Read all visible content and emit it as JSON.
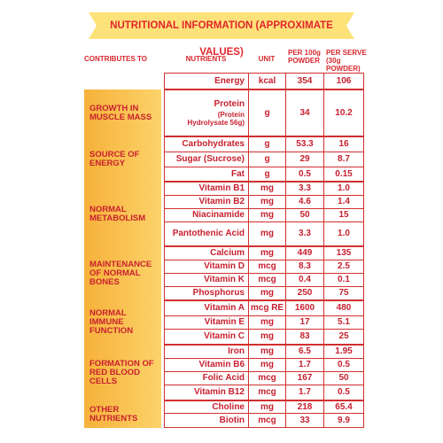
{
  "title": "NUTRITIONAL INFORMATION (APPROXIMATE VALUES)",
  "table": {
    "headers": [
      "CONTRIBUTES TO",
      "NUTRIENTS",
      "UNIT",
      "PER 100g POWDER",
      "PER SERVE (30g POWDER)"
    ],
    "groups": [
      {
        "rows": [
          {
            "nutrient": "Energy",
            "unit": "kcal",
            "per_100g": "354",
            "per_serve": "106"
          }
        ]
      },
      {
        "label": "GROWTH IN MUSCLE MASS",
        "rows": [
          {
            "nutrient": "Protein",
            "note": "(Protein Hydrolysate 56g)",
            "unit": "g",
            "per_100g": "34",
            "per_serve": "10.2"
          }
        ]
      },
      {
        "label": "SOURCE OF ENERGY",
        "rows": [
          {
            "nutrient": "Carbohydrates",
            "unit": "g",
            "per_100g": "53.3",
            "per_serve": "16"
          },
          {
            "nutrient": "Sugar (Sucrose)",
            "unit": "g",
            "per_100g": "29",
            "per_serve": "8.7"
          },
          {
            "nutrient": "Fat",
            "unit": "g",
            "per_100g": "0.5",
            "per_serve": "0.15"
          }
        ]
      },
      {
        "label": "NORMAL METABOLISM",
        "rows": [
          {
            "nutrient": "Vitamin B1",
            "unit": "mg",
            "per_100g": "3.3",
            "per_serve": "1.0"
          },
          {
            "nutrient": "Vitamin B2",
            "unit": "mg",
            "per_100g": "4.6",
            "per_serve": "1.4"
          },
          {
            "nutrient": "Niacinamide",
            "unit": "mg",
            "per_100g": "50",
            "per_serve": "15"
          },
          {
            "nutrient": "Pantothenic Acid",
            "unit": "mg",
            "per_100g": "3.3",
            "per_serve": "1.0"
          }
        ]
      },
      {
        "label": "MAINTENANCE OF NORMAL BONES",
        "rows": [
          {
            "nutrient": "Calcium",
            "unit": "mg",
            "per_100g": "449",
            "per_serve": "135"
          },
          {
            "nutrient": "Vitamin D",
            "unit": "mcg",
            "per_100g": "8.3",
            "per_serve": "2.5"
          },
          {
            "nutrient": "Vitamin K",
            "unit": "mcg",
            "per_100g": "0.4",
            "per_serve": "0.1"
          },
          {
            "nutrient": "Phosphorus",
            "unit": "mg",
            "per_100g": "250",
            "per_serve": "75"
          }
        ]
      },
      {
        "label": "NORMAL IMMUNE FUNCTION",
        "rows": [
          {
            "nutrient": "Vitamin A",
            "unit": "mcg RE",
            "per_100g": "1600",
            "per_serve": "480"
          },
          {
            "nutrient": "Vitamin E",
            "unit": "mg",
            "per_100g": "17",
            "per_serve": "5.1"
          },
          {
            "nutrient": "Vitamin C",
            "unit": "mg",
            "per_100g": "83",
            "per_serve": "25"
          }
        ]
      },
      {
        "label": "FORMATION OF RED BLOOD CELLS",
        "rows": [
          {
            "nutrient": "Iron",
            "unit": "mg",
            "per_100g": "6.5",
            "per_serve": "1.95"
          },
          {
            "nutrient": "Vitamin B6",
            "unit": "mg",
            "per_100g": "1.7",
            "per_serve": "0.5"
          },
          {
            "nutrient": "Folic Acid",
            "unit": "mcg",
            "per_100g": "167",
            "per_serve": "50"
          },
          {
            "nutrient": "Vitamin B12",
            "unit": "mcg",
            "per_100g": "1.7",
            "per_serve": "0.5"
          }
        ]
      },
      {
        "label": "OTHER NUTRIENTS",
        "rows": [
          {
            "nutrient": "Choline",
            "unit": "mg",
            "per_100g": "218",
            "per_serve": "65.4"
          },
          {
            "nutrient": "Biotin",
            "unit": "mcg",
            "per_100g": "33",
            "per_serve": "9.9"
          }
        ]
      }
    ]
  }
}
